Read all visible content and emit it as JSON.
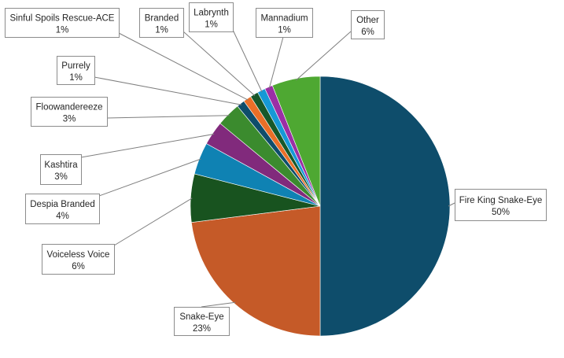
{
  "chart_data": {
    "type": "pie",
    "title": "",
    "start": "top",
    "direction": "clockwise",
    "slices": [
      {
        "name": "Fire King Snake-Eye",
        "value": 50,
        "label": "50%",
        "color": "#0e4d6b"
      },
      {
        "name": "Snake-Eye",
        "value": 23,
        "label": "23%",
        "color": "#c55a28"
      },
      {
        "name": "Voiceless Voice",
        "value": 6,
        "label": "6%",
        "color": "#18531f"
      },
      {
        "name": "Despia Branded",
        "value": 4,
        "label": "4%",
        "color": "#0f82b3"
      },
      {
        "name": "Kashtira",
        "value": 3,
        "label": "3%",
        "color": "#812a7c"
      },
      {
        "name": "Floowandereeze",
        "value": 3,
        "label": "3%",
        "color": "#3b8b2e"
      },
      {
        "name": "Purrely",
        "value": 1,
        "label": "1%",
        "color": "#0e4d6b"
      },
      {
        "name": "Sinful Spoils Rescue-ACE",
        "value": 1,
        "label": "1%",
        "color": "#e96f28"
      },
      {
        "name": "Branded",
        "value": 1,
        "label": "1%",
        "color": "#17582a"
      },
      {
        "name": "Labrynth",
        "value": 1,
        "label": "1%",
        "color": "#1699d6"
      },
      {
        "name": "Mannadium",
        "value": 1,
        "label": "1%",
        "color": "#9b2fa5"
      },
      {
        "name": "Other",
        "value": 6,
        "label": "6%",
        "color": "#4ea832"
      }
    ]
  }
}
